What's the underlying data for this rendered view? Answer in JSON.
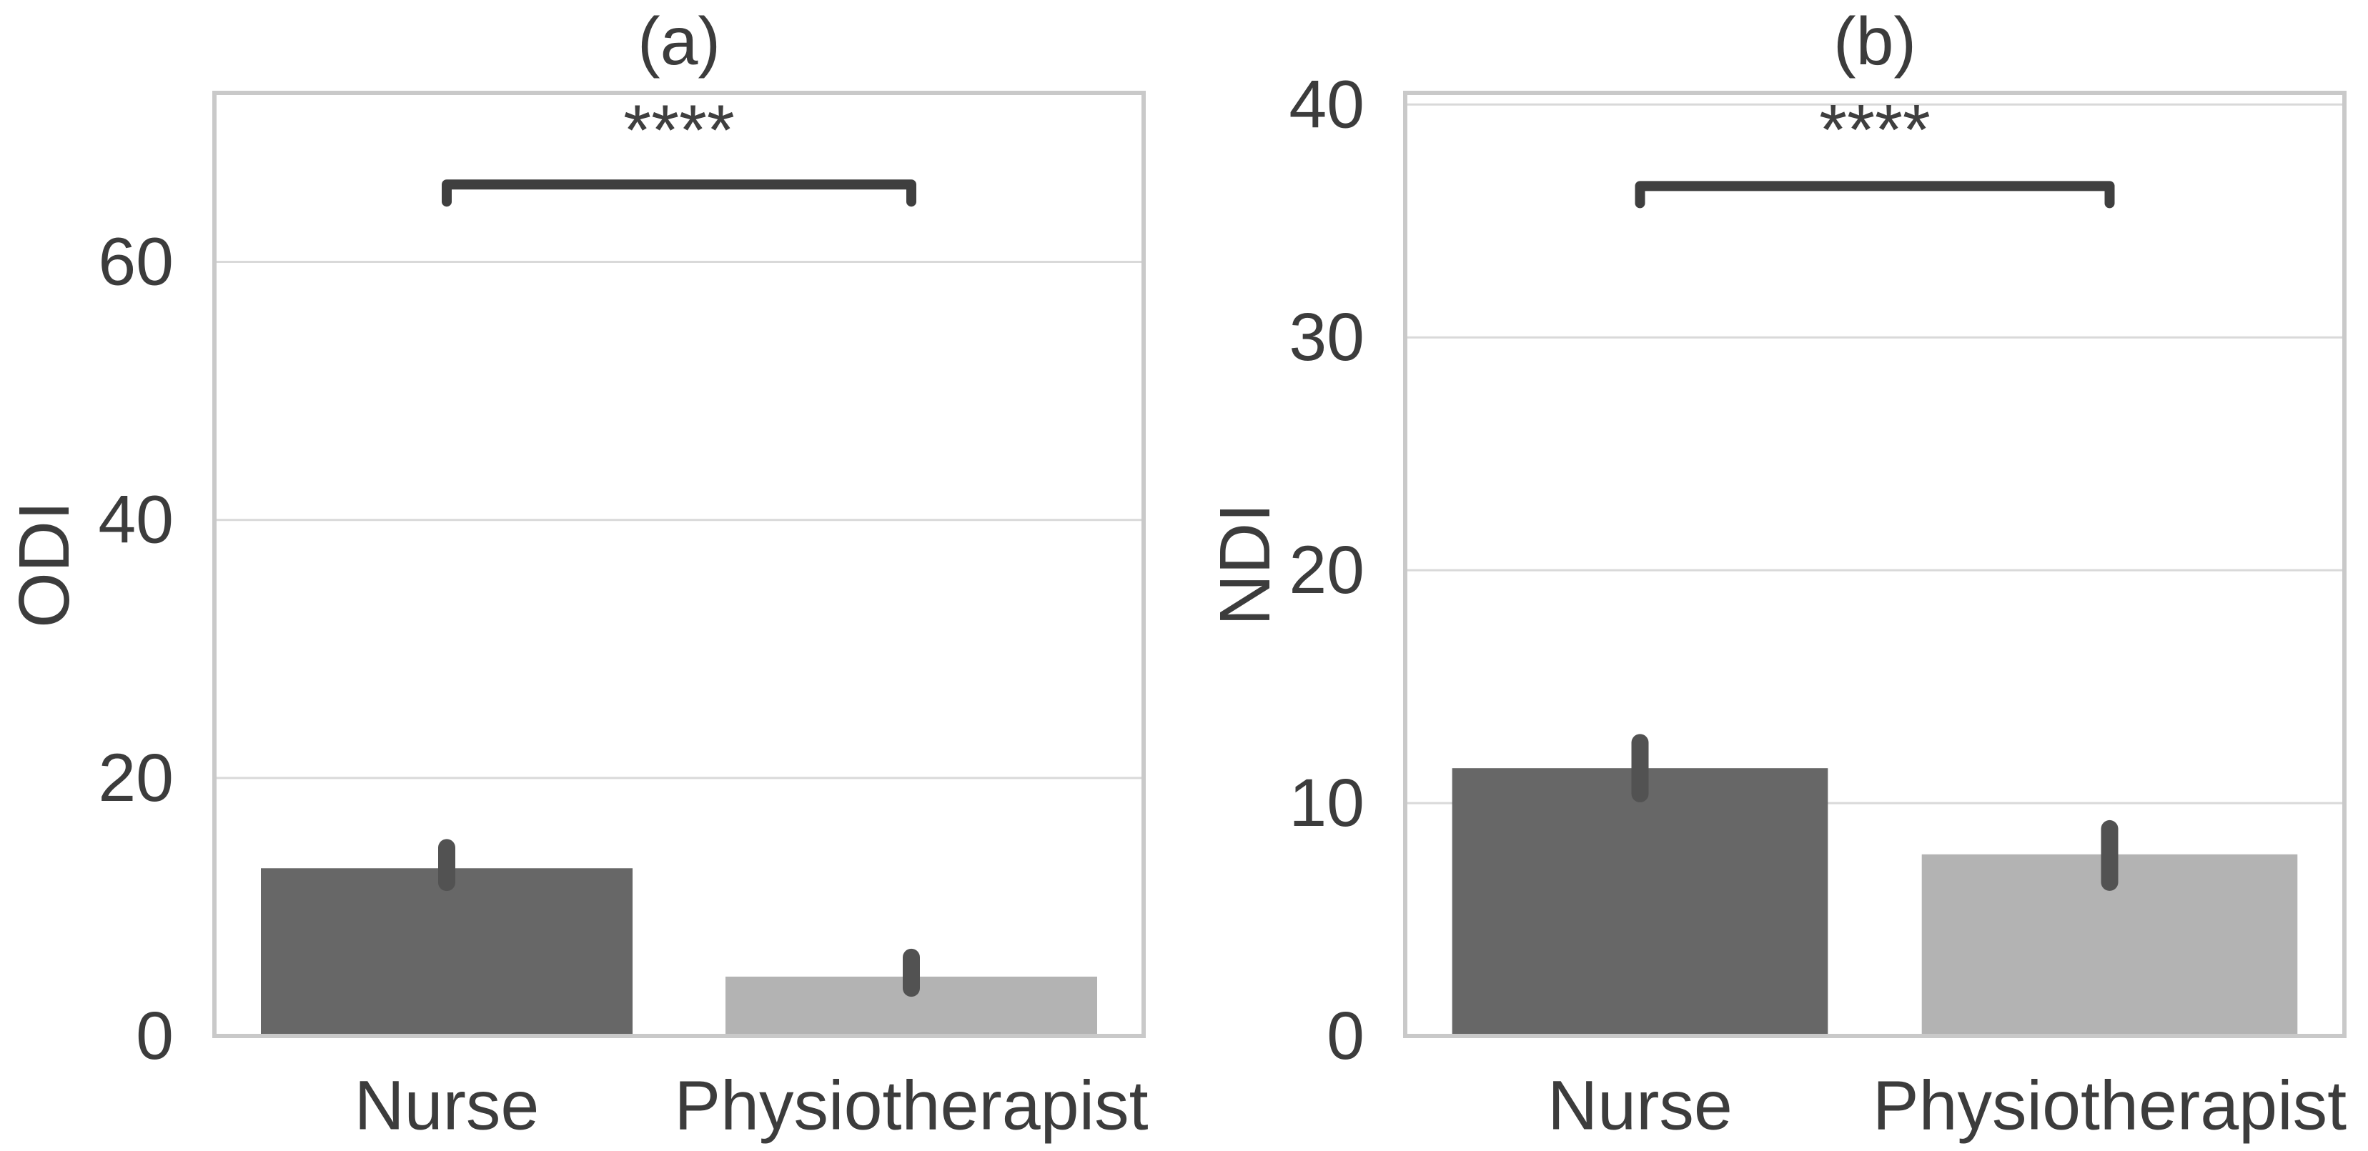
{
  "figure": {
    "description": "Two-panel bar chart comparing Nurse vs Physiotherapist disability index scores",
    "panel_titles": [
      "(a)",
      "(b)"
    ]
  },
  "chart_data": [
    {
      "type": "bar",
      "title": "(a)",
      "xlabel": "",
      "ylabel": "ODI",
      "categories": [
        "Nurse",
        "Physiotherapist"
      ],
      "values": [
        13.0,
        4.6
      ],
      "error_bars": [
        [
          11.9,
          14.6
        ],
        [
          3.7,
          6.1
        ]
      ],
      "yticks": [
        0,
        20,
        40,
        60
      ],
      "ylim": [
        0,
        73.1
      ],
      "grid": "horizontal",
      "legend": "none",
      "significance": {
        "label": "****",
        "bracket_value": 66.0,
        "label_value": 70.2
      }
    },
    {
      "type": "bar",
      "title": "(b)",
      "xlabel": "",
      "ylabel": "NDI",
      "categories": [
        "Nurse",
        "Physiotherapist"
      ],
      "values": [
        11.5,
        7.8
      ],
      "error_bars": [
        [
          10.4,
          12.6
        ],
        [
          6.6,
          8.9
        ]
      ],
      "yticks": [
        0,
        10,
        20,
        30,
        40
      ],
      "ylim": [
        0,
        40.5
      ],
      "grid": "horizontal",
      "legend": "none",
      "significance": {
        "label": "****",
        "bracket_value": 36.5,
        "label_value": 38.9
      }
    }
  ],
  "style": {
    "background": "#ffffff",
    "bar_colors": [
      "#676767",
      "#b3b3b3"
    ],
    "error_bar_color": "#525252",
    "bracket_color": "#3f3f3f",
    "grid_color": "#d9d9d9",
    "border_color": "#c9c9c9",
    "text_color": "#3c3c3c"
  }
}
